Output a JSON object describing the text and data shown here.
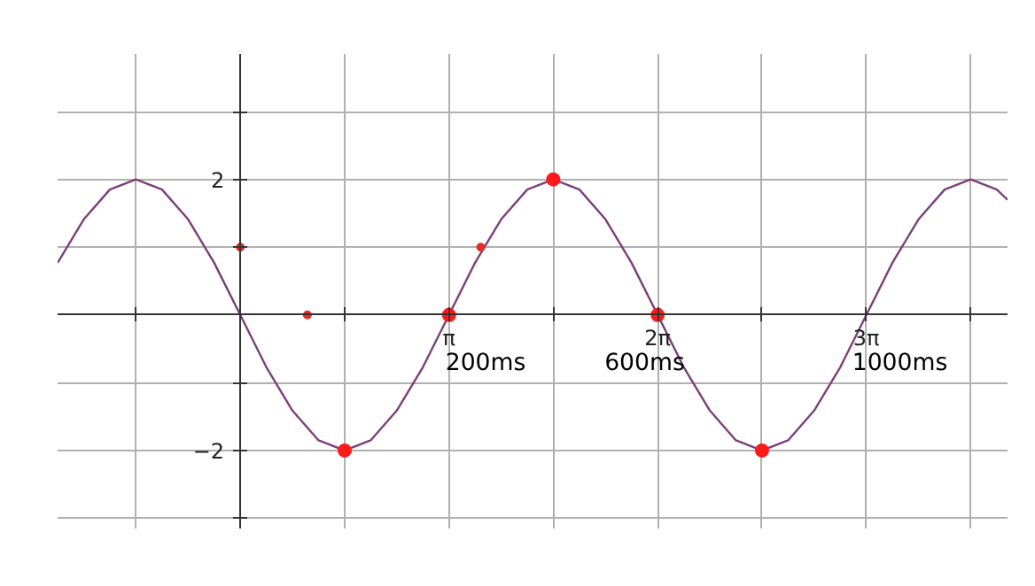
{
  "chart_data": {
    "type": "line",
    "x": [
      -2.749,
      -2.356,
      -1.963,
      -1.571,
      -1.178,
      -0.785,
      -0.393,
      0,
      0.393,
      0.785,
      1.178,
      1.571,
      1.963,
      2.356,
      2.749,
      3.142,
      3.534,
      3.927,
      4.32,
      4.712,
      5.105,
      5.498,
      5.89,
      6.283,
      6.676,
      7.069,
      7.461,
      7.854,
      8.247,
      8.639,
      9.032,
      9.425,
      9.817,
      10.21,
      10.603,
      10.996,
      11.388,
      11.55
    ],
    "series": [
      {
        "color": "#7b3f7b",
        "values": [
          0.77,
          1.41,
          1.85,
          2,
          1.85,
          1.41,
          0.77,
          0,
          -0.77,
          -1.41,
          -1.85,
          -2,
          -1.85,
          -1.41,
          -0.77,
          0,
          0.77,
          1.41,
          1.85,
          2,
          1.85,
          1.41,
          0.77,
          0,
          -0.77,
          -1.41,
          -1.85,
          -2,
          -1.85,
          -1.41,
          -0.77,
          0,
          0.77,
          1.41,
          1.85,
          2,
          1.85,
          1.7
        ]
      },
      {
        "type": "scatter",
        "color": "#ff1a1a",
        "x": [
          1.571,
          3.142,
          4.712,
          6.283,
          7.854
        ],
        "values": [
          -2,
          0,
          2,
          0,
          -2
        ]
      },
      {
        "type": "scatter",
        "color": "#e0302a",
        "x": [
          0,
          1.01,
          3.62
        ],
        "values": [
          1,
          0,
          1
        ]
      }
    ],
    "xlim": [
      -2.75,
      11.55
    ],
    "ylim": [
      -3.15,
      3.85
    ],
    "xticks": [
      {
        "value": -1.571,
        "label": null
      },
      {
        "value": 1.571,
        "label": null
      },
      {
        "value": 3.142,
        "label": "π"
      },
      {
        "value": 4.712,
        "label": null
      },
      {
        "value": 6.283,
        "label": "2π"
      },
      {
        "value": 7.854,
        "label": null
      },
      {
        "value": 9.425,
        "label": "3π"
      },
      {
        "value": 10.996,
        "label": null
      }
    ],
    "yticks": [
      {
        "value": -3,
        "label": null
      },
      {
        "value": -2,
        "label": "−2"
      },
      {
        "value": -1,
        "label": null
      },
      {
        "value": 1,
        "label": null
      },
      {
        "value": 2,
        "label": "2"
      },
      {
        "value": 3,
        "label": null
      }
    ],
    "grid": true,
    "annotations": [
      {
        "text": "200ms",
        "x": 3.142,
        "y": 0
      },
      {
        "text": "600ms",
        "x": 6.283,
        "y": 0
      },
      {
        "text": "1000ms",
        "x": 9.425,
        "y": 0
      }
    ]
  }
}
